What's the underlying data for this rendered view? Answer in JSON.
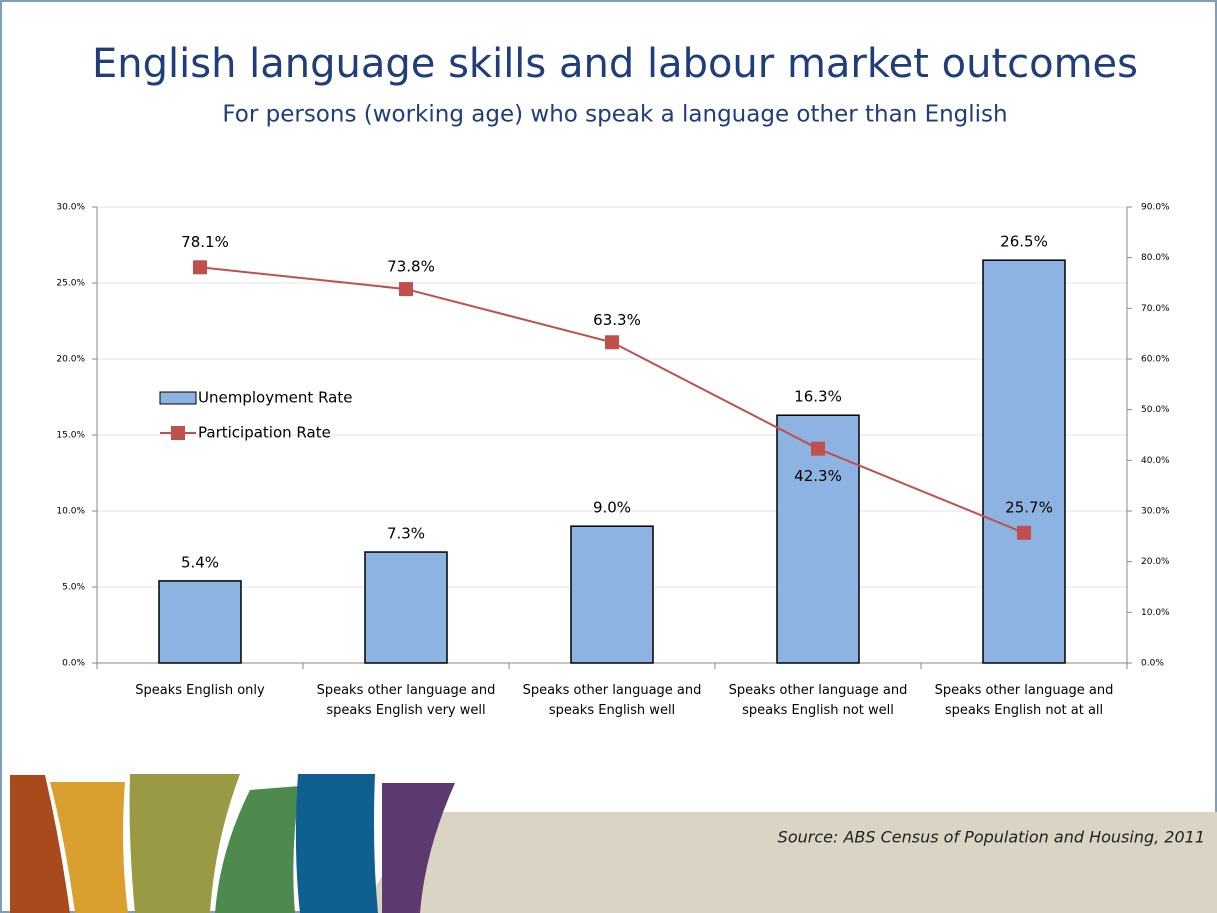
{
  "chart_data": {
    "type": "bar_line",
    "title": "English language skills and labour market outcomes",
    "subtitle": "For persons (working age) who speak a language other than English",
    "categories": [
      "Speaks English only",
      "Speaks other language and speaks English very well",
      "Speaks other language and speaks English well",
      "Speaks other language and speaks English not well",
      "Speaks other language and speaks English not at all"
    ],
    "series": [
      {
        "name": "Unemployment Rate",
        "color": "#8db3e2",
        "values": [
          5.4,
          7.3,
          9.0,
          16.3,
          26.5
        ],
        "value_labels": [
          "5.4%",
          "7.3%",
          "9.0%",
          "16.3%",
          "26.5%"
        ]
      },
      {
        "name": "Participation Rate",
        "color": "#c0504d",
        "axis": "y2",
        "values": [
          78.1,
          73.8,
          63.3,
          42.3,
          25.7
        ],
        "value_labels": [
          "78.1%",
          "73.8%",
          "63.3%",
          "42.3%",
          "25.7%"
        ]
      }
    ],
    "ylim": [
      0,
      30
    ],
    "yticks": [
      {
        "value": 0,
        "label": "0.0%"
      },
      {
        "value": 5,
        "label": "5.0%"
      },
      {
        "value": 10,
        "label": "10.0%"
      },
      {
        "value": 15,
        "label": "15.0%"
      },
      {
        "value": 20,
        "label": "20.0%"
      },
      {
        "value": 25,
        "label": "25.0%"
      },
      {
        "value": 30,
        "label": "30.0%"
      }
    ],
    "y2lim": [
      0,
      90
    ],
    "y2ticks": [
      {
        "value": 0,
        "label": "0.0%"
      },
      {
        "value": 10,
        "label": "10.0%"
      },
      {
        "value": 20,
        "label": "20.0%"
      },
      {
        "value": 30,
        "label": "30.0%"
      },
      {
        "value": 40,
        "label": "40.0%"
      },
      {
        "value": 50,
        "label": "50.0%"
      },
      {
        "value": 60,
        "label": "60.0%"
      },
      {
        "value": 70,
        "label": "70.0%"
      },
      {
        "value": 80,
        "label": "80.0%"
      },
      {
        "value": 90,
        "label": "90.0%"
      }
    ],
    "grid": true,
    "legend": "left",
    "source": "Source: ABS Census of Population and Housing, 2011"
  }
}
